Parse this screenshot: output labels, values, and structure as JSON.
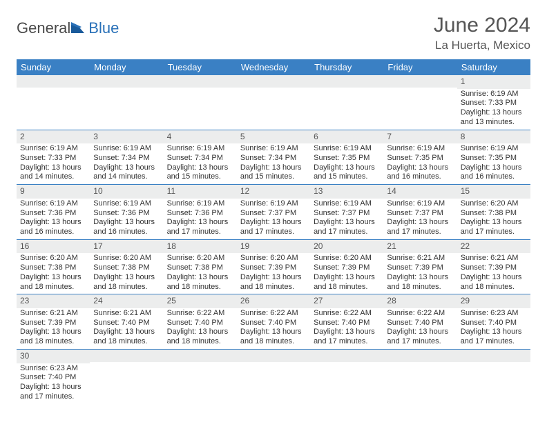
{
  "logo": {
    "general": "General",
    "blue": "Blue"
  },
  "title": "June 2024",
  "location": "La Huerta, Mexico",
  "colors": {
    "header_bg": "#3a80c4",
    "header_text": "#ffffff",
    "daynum_bg": "#eceded",
    "border": "#3a80c4",
    "title_color": "#555555",
    "logo_gray": "#4a4a4a",
    "logo_blue": "#2a71b8"
  },
  "weekdays": [
    "Sunday",
    "Monday",
    "Tuesday",
    "Wednesday",
    "Thursday",
    "Friday",
    "Saturday"
  ],
  "weeks": [
    [
      {
        "n": "",
        "sr": "",
        "ss": "",
        "dl": ""
      },
      {
        "n": "",
        "sr": "",
        "ss": "",
        "dl": ""
      },
      {
        "n": "",
        "sr": "",
        "ss": "",
        "dl": ""
      },
      {
        "n": "",
        "sr": "",
        "ss": "",
        "dl": ""
      },
      {
        "n": "",
        "sr": "",
        "ss": "",
        "dl": ""
      },
      {
        "n": "",
        "sr": "",
        "ss": "",
        "dl": ""
      },
      {
        "n": "1",
        "sr": "Sunrise: 6:19 AM",
        "ss": "Sunset: 7:33 PM",
        "dl": "Daylight: 13 hours and 13 minutes."
      }
    ],
    [
      {
        "n": "2",
        "sr": "Sunrise: 6:19 AM",
        "ss": "Sunset: 7:33 PM",
        "dl": "Daylight: 13 hours and 14 minutes."
      },
      {
        "n": "3",
        "sr": "Sunrise: 6:19 AM",
        "ss": "Sunset: 7:34 PM",
        "dl": "Daylight: 13 hours and 14 minutes."
      },
      {
        "n": "4",
        "sr": "Sunrise: 6:19 AM",
        "ss": "Sunset: 7:34 PM",
        "dl": "Daylight: 13 hours and 15 minutes."
      },
      {
        "n": "5",
        "sr": "Sunrise: 6:19 AM",
        "ss": "Sunset: 7:34 PM",
        "dl": "Daylight: 13 hours and 15 minutes."
      },
      {
        "n": "6",
        "sr": "Sunrise: 6:19 AM",
        "ss": "Sunset: 7:35 PM",
        "dl": "Daylight: 13 hours and 15 minutes."
      },
      {
        "n": "7",
        "sr": "Sunrise: 6:19 AM",
        "ss": "Sunset: 7:35 PM",
        "dl": "Daylight: 13 hours and 16 minutes."
      },
      {
        "n": "8",
        "sr": "Sunrise: 6:19 AM",
        "ss": "Sunset: 7:35 PM",
        "dl": "Daylight: 13 hours and 16 minutes."
      }
    ],
    [
      {
        "n": "9",
        "sr": "Sunrise: 6:19 AM",
        "ss": "Sunset: 7:36 PM",
        "dl": "Daylight: 13 hours and 16 minutes."
      },
      {
        "n": "10",
        "sr": "Sunrise: 6:19 AM",
        "ss": "Sunset: 7:36 PM",
        "dl": "Daylight: 13 hours and 16 minutes."
      },
      {
        "n": "11",
        "sr": "Sunrise: 6:19 AM",
        "ss": "Sunset: 7:36 PM",
        "dl": "Daylight: 13 hours and 17 minutes."
      },
      {
        "n": "12",
        "sr": "Sunrise: 6:19 AM",
        "ss": "Sunset: 7:37 PM",
        "dl": "Daylight: 13 hours and 17 minutes."
      },
      {
        "n": "13",
        "sr": "Sunrise: 6:19 AM",
        "ss": "Sunset: 7:37 PM",
        "dl": "Daylight: 13 hours and 17 minutes."
      },
      {
        "n": "14",
        "sr": "Sunrise: 6:19 AM",
        "ss": "Sunset: 7:37 PM",
        "dl": "Daylight: 13 hours and 17 minutes."
      },
      {
        "n": "15",
        "sr": "Sunrise: 6:20 AM",
        "ss": "Sunset: 7:38 PM",
        "dl": "Daylight: 13 hours and 17 minutes."
      }
    ],
    [
      {
        "n": "16",
        "sr": "Sunrise: 6:20 AM",
        "ss": "Sunset: 7:38 PM",
        "dl": "Daylight: 13 hours and 18 minutes."
      },
      {
        "n": "17",
        "sr": "Sunrise: 6:20 AM",
        "ss": "Sunset: 7:38 PM",
        "dl": "Daylight: 13 hours and 18 minutes."
      },
      {
        "n": "18",
        "sr": "Sunrise: 6:20 AM",
        "ss": "Sunset: 7:38 PM",
        "dl": "Daylight: 13 hours and 18 minutes."
      },
      {
        "n": "19",
        "sr": "Sunrise: 6:20 AM",
        "ss": "Sunset: 7:39 PM",
        "dl": "Daylight: 13 hours and 18 minutes."
      },
      {
        "n": "20",
        "sr": "Sunrise: 6:20 AM",
        "ss": "Sunset: 7:39 PM",
        "dl": "Daylight: 13 hours and 18 minutes."
      },
      {
        "n": "21",
        "sr": "Sunrise: 6:21 AM",
        "ss": "Sunset: 7:39 PM",
        "dl": "Daylight: 13 hours and 18 minutes."
      },
      {
        "n": "22",
        "sr": "Sunrise: 6:21 AM",
        "ss": "Sunset: 7:39 PM",
        "dl": "Daylight: 13 hours and 18 minutes."
      }
    ],
    [
      {
        "n": "23",
        "sr": "Sunrise: 6:21 AM",
        "ss": "Sunset: 7:39 PM",
        "dl": "Daylight: 13 hours and 18 minutes."
      },
      {
        "n": "24",
        "sr": "Sunrise: 6:21 AM",
        "ss": "Sunset: 7:40 PM",
        "dl": "Daylight: 13 hours and 18 minutes."
      },
      {
        "n": "25",
        "sr": "Sunrise: 6:22 AM",
        "ss": "Sunset: 7:40 PM",
        "dl": "Daylight: 13 hours and 18 minutes."
      },
      {
        "n": "26",
        "sr": "Sunrise: 6:22 AM",
        "ss": "Sunset: 7:40 PM",
        "dl": "Daylight: 13 hours and 18 minutes."
      },
      {
        "n": "27",
        "sr": "Sunrise: 6:22 AM",
        "ss": "Sunset: 7:40 PM",
        "dl": "Daylight: 13 hours and 17 minutes."
      },
      {
        "n": "28",
        "sr": "Sunrise: 6:22 AM",
        "ss": "Sunset: 7:40 PM",
        "dl": "Daylight: 13 hours and 17 minutes."
      },
      {
        "n": "29",
        "sr": "Sunrise: 6:23 AM",
        "ss": "Sunset: 7:40 PM",
        "dl": "Daylight: 13 hours and 17 minutes."
      }
    ],
    [
      {
        "n": "30",
        "sr": "Sunrise: 6:23 AM",
        "ss": "Sunset: 7:40 PM",
        "dl": "Daylight: 13 hours and 17 minutes."
      },
      {
        "n": "",
        "sr": "",
        "ss": "",
        "dl": ""
      },
      {
        "n": "",
        "sr": "",
        "ss": "",
        "dl": ""
      },
      {
        "n": "",
        "sr": "",
        "ss": "",
        "dl": ""
      },
      {
        "n": "",
        "sr": "",
        "ss": "",
        "dl": ""
      },
      {
        "n": "",
        "sr": "",
        "ss": "",
        "dl": ""
      },
      {
        "n": "",
        "sr": "",
        "ss": "",
        "dl": ""
      }
    ]
  ]
}
